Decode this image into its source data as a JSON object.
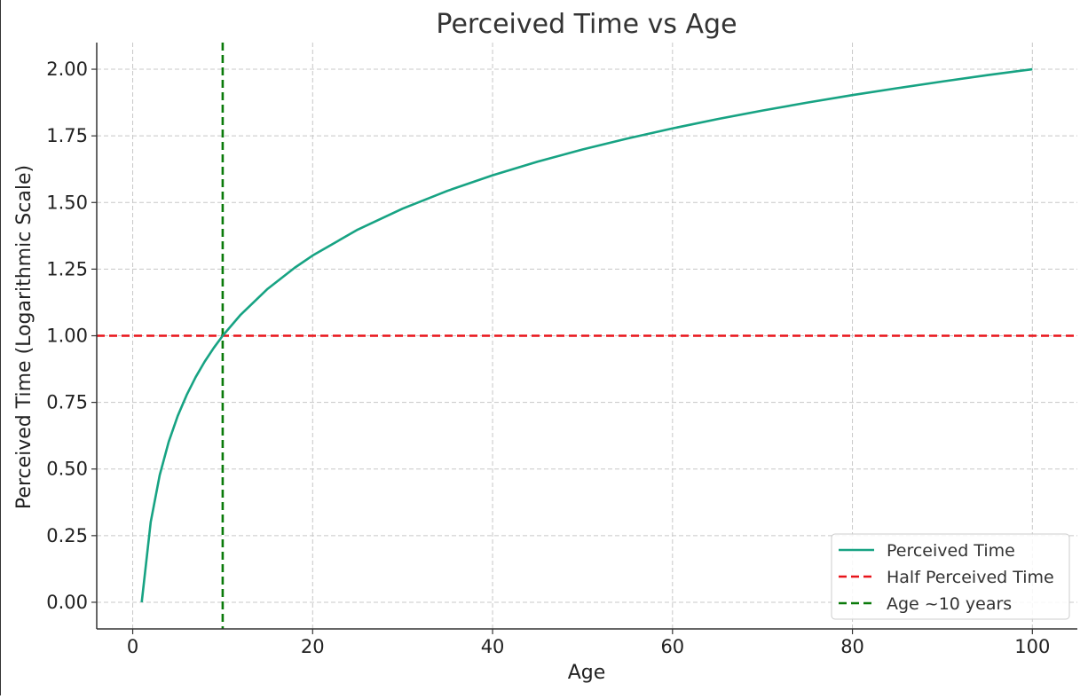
{
  "chart_data": {
    "type": "line",
    "title": "Perceived Time vs Age",
    "xlabel": "Age",
    "ylabel": "Perceived Time (Logarithmic Scale)",
    "xlim": [
      -4,
      105
    ],
    "ylim": [
      -0.1,
      2.1
    ],
    "xticks": [
      0,
      20,
      40,
      60,
      80,
      100
    ],
    "xtick_labels": [
      "0",
      "20",
      "40",
      "60",
      "80",
      "100"
    ],
    "yticks": [
      0,
      0.25,
      0.5,
      0.75,
      1.0,
      1.25,
      1.5,
      1.75,
      2.0
    ],
    "ytick_labels": [
      "0.00",
      "0.25",
      "0.50",
      "0.75",
      "1.00",
      "1.25",
      "1.50",
      "1.75",
      "2.00"
    ],
    "grid": true,
    "legend_position": "bottom-right",
    "series": [
      {
        "name": "Perceived Time",
        "color": "#17a383",
        "style": "solid",
        "x": [
          1,
          2,
          3,
          4,
          5,
          6,
          7,
          8,
          9,
          10,
          12,
          15,
          18,
          20,
          25,
          30,
          35,
          40,
          45,
          50,
          55,
          60,
          65,
          70,
          75,
          80,
          85,
          90,
          95,
          100
        ],
        "y": [
          0.0,
          0.301,
          0.477,
          0.602,
          0.699,
          0.778,
          0.845,
          0.903,
          0.954,
          1.0,
          1.079,
          1.176,
          1.255,
          1.301,
          1.398,
          1.477,
          1.544,
          1.602,
          1.653,
          1.699,
          1.74,
          1.778,
          1.813,
          1.845,
          1.875,
          1.903,
          1.929,
          1.954,
          1.978,
          2.0
        ]
      }
    ],
    "reference_lines": [
      {
        "name": "Half Perceived Time",
        "orientation": "horizontal",
        "value": 1.0,
        "color": "#e8141a",
        "style": "dashed"
      },
      {
        "name": "Age ~10 years",
        "orientation": "vertical",
        "value": 10,
        "color": "#0a7a0a",
        "style": "dashed"
      }
    ]
  }
}
